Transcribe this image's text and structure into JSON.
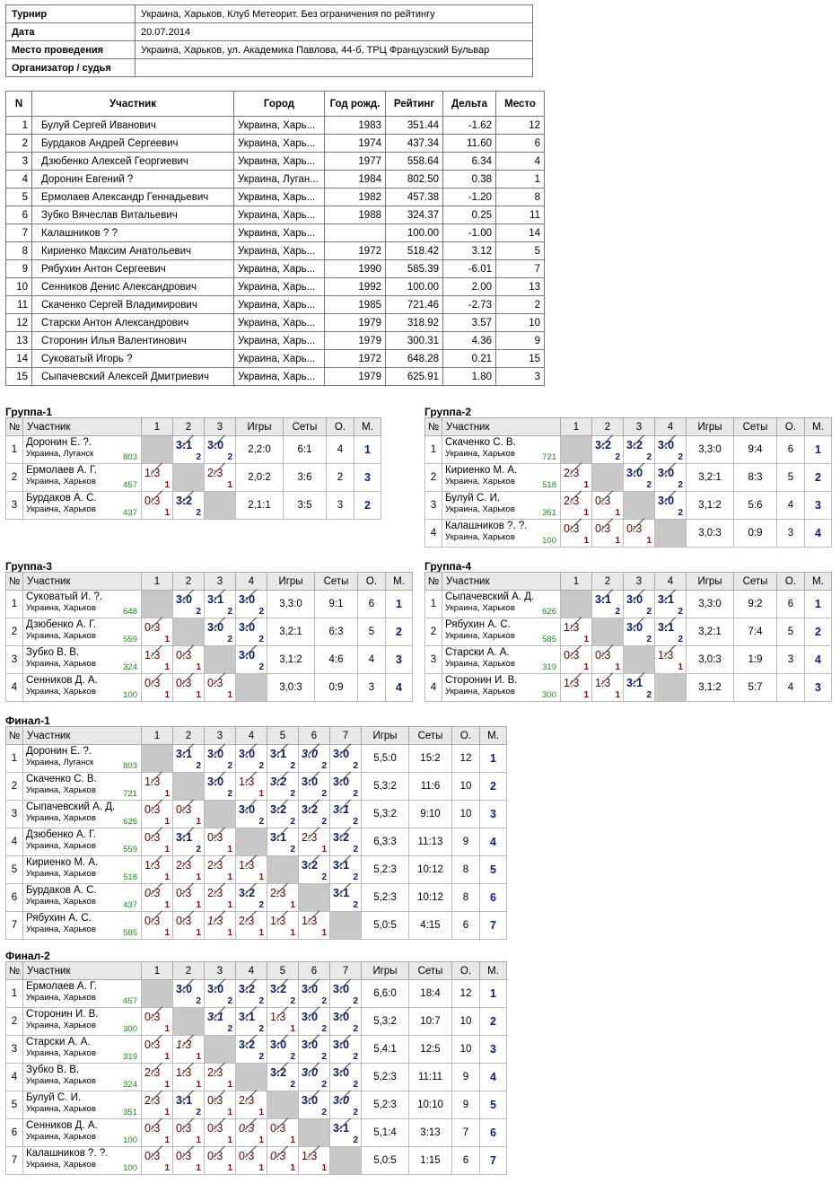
{
  "info": [
    {
      "k": "Турнир",
      "v": "Украина, Харьков, Клуб Метеорит. Без ограничения по рейтингу"
    },
    {
      "k": "Дата",
      "v": "20.07.2014"
    },
    {
      "k": "Место проведения",
      "v": "Украина, Харьков, ул. Академика Павлова, 44-б, ТРЦ Французский Бульвар"
    },
    {
      "k": "Организатор / судья",
      "v": ""
    }
  ],
  "main": {
    "headers": [
      "N",
      "Участник",
      "Город",
      "Год рожд.",
      "Рейтинг",
      "Дельта",
      "Место"
    ],
    "rows": [
      [
        "1",
        "Булуй Сергей Иванович",
        "Украина, Харь...",
        "1983",
        "351.44",
        "-1.62",
        "12"
      ],
      [
        "2",
        "Бурдаков Андрей Сергеевич",
        "Украина, Харь...",
        "1974",
        "437.34",
        "11.60",
        "6"
      ],
      [
        "3",
        "Дзюбенко Алексей Георгиевич",
        "Украина, Харь...",
        "1977",
        "558.64",
        "6.34",
        "4"
      ],
      [
        "4",
        "Доронин Евгений ?",
        "Украина, Луган...",
        "1984",
        "802.50",
        "0.38",
        "1"
      ],
      [
        "5",
        "Ермолаев Александр Геннадьевич",
        "Украина, Харь...",
        "1982",
        "457.38",
        "-1.20",
        "8"
      ],
      [
        "6",
        "Зубко Вячеслав Витальевич",
        "Украина, Харь...",
        "1988",
        "324.37",
        "0.25",
        "11"
      ],
      [
        "7",
        "Калашников ? ?",
        "Украина, Харь...",
        "",
        "100.00",
        "-1.00",
        "14"
      ],
      [
        "8",
        "Кириенко Максим Анатольевич",
        "Украина, Харь...",
        "1972",
        "518.42",
        "3.12",
        "5"
      ],
      [
        "9",
        "Рябухин Антон Сергеевич",
        "Украина, Харь...",
        "1990",
        "585.39",
        "-6.01",
        "7"
      ],
      [
        "10",
        "Сенников Денис Александрович",
        "Украина, Харь...",
        "1992",
        "100.00",
        "2.00",
        "13"
      ],
      [
        "11",
        "Скаченко Сергей Владимирович",
        "Украина, Харь...",
        "1985",
        "721.46",
        "-2.73",
        "2"
      ],
      [
        "12",
        "Старски Антон Александрович",
        "Украина, Харь...",
        "1979",
        "318.92",
        "3.57",
        "10"
      ],
      [
        "13",
        "Сторонин Илья Валентинович",
        "Украина, Харь...",
        "1979",
        "300.31",
        "4.36",
        "9"
      ],
      [
        "14",
        "Суковатый Игорь ?",
        "Украина, Харь...",
        "1972",
        "648.28",
        "0.21",
        "15"
      ],
      [
        "15",
        "Сыпачевский Алексей Дмитриевич",
        "Украина, Харь...",
        "1979",
        "625.91",
        "1.80",
        "3"
      ]
    ]
  },
  "groups": [
    {
      "title": "Группа-1",
      "headers": [
        "№",
        "Участник",
        "1",
        "2",
        "3",
        "Игры",
        "Сеты",
        "О.",
        "М."
      ],
      "players": [
        {
          "n": "1",
          "name": "Доронин Е. ?.",
          "city": "Украина, Луганск",
          "rating": "803",
          "cells": [
            "x",
            "3:1|2|w",
            "3:0|2|w"
          ],
          "games": "2,2:0",
          "sets": "6:1",
          "pts": "4",
          "place": "1"
        },
        {
          "n": "2",
          "name": "Ермолаев А. Г.",
          "city": "Украина, Харьков",
          "rating": "457",
          "cells": [
            "1:3|1|l",
            "x",
            "2:3|1|l"
          ],
          "games": "2,0:2",
          "sets": "3:6",
          "pts": "2",
          "place": "3"
        },
        {
          "n": "3",
          "name": "Бурдаков А. С.",
          "city": "Украина, Харьков",
          "rating": "437",
          "cells": [
            "0:3|1|l",
            "3:2|2|w",
            "x"
          ],
          "games": "2,1:1",
          "sets": "3:5",
          "pts": "3",
          "place": "2"
        }
      ]
    },
    {
      "title": "Группа-2",
      "headers": [
        "№",
        "Участник",
        "1",
        "2",
        "3",
        "4",
        "Игры",
        "Сеты",
        "О.",
        "М."
      ],
      "players": [
        {
          "n": "1",
          "name": "Скаченко С. В.",
          "city": "Украина, Харьков",
          "rating": "721",
          "cells": [
            "x",
            "3:2|2|w",
            "3:2|2|w",
            "3:0|2|w"
          ],
          "games": "3,3:0",
          "sets": "9:4",
          "pts": "6",
          "place": "1"
        },
        {
          "n": "2",
          "name": "Кириенко М. А.",
          "city": "Украина, Харьков",
          "rating": "518",
          "cells": [
            "2:3|1|l",
            "x",
            "3:0|2|w",
            "3:0|2|w"
          ],
          "games": "3,2:1",
          "sets": "8:3",
          "pts": "5",
          "place": "2"
        },
        {
          "n": "3",
          "name": "Булуй С. И.",
          "city": "Украина, Харьков",
          "rating": "351",
          "cells": [
            "2:3|1|l",
            "0:3|1|l",
            "x",
            "3:0|2|w"
          ],
          "games": "3,1:2",
          "sets": "5:6",
          "pts": "4",
          "place": "3"
        },
        {
          "n": "4",
          "name": "Калашников ?. ?.",
          "city": "Украина, Харьков",
          "rating": "100",
          "cells": [
            "0:3|1|l",
            "0:3|1|l",
            "0:3|1|l",
            "x"
          ],
          "games": "3,0:3",
          "sets": "0:9",
          "pts": "3",
          "place": "4"
        }
      ]
    },
    {
      "title": "Группа-3",
      "headers": [
        "№",
        "Участник",
        "1",
        "2",
        "3",
        "4",
        "Игры",
        "Сеты",
        "О.",
        "М."
      ],
      "players": [
        {
          "n": "1",
          "name": "Суковатый И. ?.",
          "city": "Украина, Харьков",
          "rating": "648",
          "cells": [
            "x",
            "3:0|2|w",
            "3:1|2|w",
            "3:0|2|w"
          ],
          "games": "3,3:0",
          "sets": "9:1",
          "pts": "6",
          "place": "1"
        },
        {
          "n": "2",
          "name": "Дзюбенко А. Г.",
          "city": "Украина, Харьков",
          "rating": "559",
          "cells": [
            "0:3|1|l",
            "x",
            "3:0|2|w",
            "3:0|2|w"
          ],
          "games": "3,2:1",
          "sets": "6:3",
          "pts": "5",
          "place": "2"
        },
        {
          "n": "3",
          "name": "Зубко В. В.",
          "city": "Украина, Харьков",
          "rating": "324",
          "cells": [
            "1:3|1|l",
            "0:3|1|l",
            "x",
            "3:0|2|w"
          ],
          "games": "3,1:2",
          "sets": "4:6",
          "pts": "4",
          "place": "3"
        },
        {
          "n": "4",
          "name": "Сенников Д. А.",
          "city": "Украина, Харьков",
          "rating": "100",
          "cells": [
            "0:3|1|l",
            "0:3|1|l",
            "0:3|1|l",
            "x"
          ],
          "games": "3,0:3",
          "sets": "0:9",
          "pts": "3",
          "place": "4"
        }
      ]
    },
    {
      "title": "Группа-4",
      "headers": [
        "№",
        "Участник",
        "1",
        "2",
        "3",
        "4",
        "Игры",
        "Сеты",
        "О.",
        "М."
      ],
      "players": [
        {
          "n": "1",
          "name": "Сыпачевский А. Д.",
          "city": "Украина, Харьков",
          "rating": "626",
          "cells": [
            "x",
            "3:1|2|w",
            "3:0|2|w",
            "3:1|2|w"
          ],
          "games": "3,3:0",
          "sets": "9:2",
          "pts": "6",
          "place": "1"
        },
        {
          "n": "2",
          "name": "Рябухин А. С.",
          "city": "Украина, Харьков",
          "rating": "585",
          "cells": [
            "1:3|1|l",
            "x",
            "3:0|2|w",
            "3:1|2|w"
          ],
          "games": "3,2:1",
          "sets": "7:4",
          "pts": "5",
          "place": "2"
        },
        {
          "n": "3",
          "name": "Старски А. А.",
          "city": "Украина, Харьков",
          "rating": "319",
          "cells": [
            "0:3|1|l",
            "0:3|1|l",
            "x",
            "1:3|1|l"
          ],
          "games": "3,0:3",
          "sets": "1:9",
          "pts": "3",
          "place": "4"
        },
        {
          "n": "4",
          "name": "Сторонин И. В.",
          "city": "Украина, Харьков",
          "rating": "300",
          "cells": [
            "1:3|1|l",
            "1:3|1|l",
            "3:1|2|w",
            "x"
          ],
          "games": "3,1:2",
          "sets": "5:7",
          "pts": "4",
          "place": "3"
        }
      ]
    },
    {
      "title": "Финал-1",
      "headers": [
        "№",
        "Участник",
        "1",
        "2",
        "3",
        "4",
        "5",
        "6",
        "7",
        "Игры",
        "Сеты",
        "О.",
        "М."
      ],
      "players": [
        {
          "n": "1",
          "name": "Доронин Е. ?.",
          "city": "Украина, Луганск",
          "rating": "803",
          "cells": [
            "x",
            "3:1|2|w",
            "3:0|2|w",
            "3:0|2|w",
            "3:1|2|w",
            "3:0|2|wi",
            "3:0|2|w"
          ],
          "games": "5,5:0",
          "sets": "15:2",
          "pts": "12",
          "place": "1"
        },
        {
          "n": "2",
          "name": "Скаченко С. В.",
          "city": "Украина, Харьков",
          "rating": "721",
          "cells": [
            "1:3|1|l",
            "x",
            "3:0|2|w",
            "1:3|1|l",
            "3:2|2|wi",
            "3:0|2|w",
            "3:0|2|w"
          ],
          "games": "5,3:2",
          "sets": "11:6",
          "pts": "10",
          "place": "2"
        },
        {
          "n": "3",
          "name": "Сыпачевский А. Д.",
          "city": "Украина, Харьков",
          "rating": "626",
          "cells": [
            "0:3|1|l",
            "0:3|1|l",
            "x",
            "3:0|2|w",
            "3:2|2|w",
            "3:2|2|w",
            "3:1|2|wi"
          ],
          "games": "5,3:2",
          "sets": "9:10",
          "pts": "10",
          "place": "3"
        },
        {
          "n": "4",
          "name": "Дзюбенко А. Г.",
          "city": "Украина, Харьков",
          "rating": "559",
          "cells": [
            "0:3|1|l",
            "3:1|2|w",
            "0:3|1|l",
            "x",
            "3:1|2|w",
            "2:3|1|l",
            "3:2|2|w"
          ],
          "games": "6,3:3",
          "sets": "11:13",
          "pts": "9",
          "place": "4"
        },
        {
          "n": "5",
          "name": "Кириенко М. А.",
          "city": "Украина, Харьков",
          "rating": "518",
          "cells": [
            "1:3|1|l",
            "2:3|1|l",
            "2:3|1|l",
            "1:3|1|l",
            "x",
            "3:2|2|w",
            "3:1|2|w"
          ],
          "games": "5,2:3",
          "sets": "10:12",
          "pts": "8",
          "place": "5"
        },
        {
          "n": "6",
          "name": "Бурдаков А. С.",
          "city": "Украина, Харьков",
          "rating": "437",
          "cells": [
            "0:3|1|li",
            "0:3|1|l",
            "2:3|1|l",
            "3:2|2|w",
            "2:3|1|l",
            "x",
            "3:1|2|w"
          ],
          "games": "5,2:3",
          "sets": "10:12",
          "pts": "8",
          "place": "6"
        },
        {
          "n": "7",
          "name": "Рябухин А. С.",
          "city": "Украина, Харьков",
          "rating": "585",
          "cells": [
            "0:3|1|l",
            "0:3|1|l",
            "1:3|1|li",
            "2:3|1|l",
            "1:3|1|l",
            "1:3|1|l",
            "x"
          ],
          "games": "5,0:5",
          "sets": "4:15",
          "pts": "6",
          "place": "7"
        }
      ]
    },
    {
      "title": "Финал-2",
      "headers": [
        "№",
        "Участник",
        "1",
        "2",
        "3",
        "4",
        "5",
        "6",
        "7",
        "Игры",
        "Сеты",
        "О.",
        "М."
      ],
      "players": [
        {
          "n": "1",
          "name": "Ермолаев А. Г.",
          "city": "Украина, Харьков",
          "rating": "457",
          "cells": [
            "x",
            "3:0|2|w",
            "3:0|2|w",
            "3:2|2|w",
            "3:2|2|w",
            "3:0|2|w",
            "3:0|2|w"
          ],
          "games": "6,6:0",
          "sets": "18:4",
          "pts": "12",
          "place": "1"
        },
        {
          "n": "2",
          "name": "Сторонин И. В.",
          "city": "Украина, Харьков",
          "rating": "300",
          "cells": [
            "0:3|1|l",
            "x",
            "3:1|2|wi",
            "3:1|2|w",
            "1:3|1|l",
            "3:0|2|w",
            "3:0|2|w"
          ],
          "games": "5,3:2",
          "sets": "10:7",
          "pts": "10",
          "place": "2"
        },
        {
          "n": "3",
          "name": "Старски А. А.",
          "city": "Украина, Харьков",
          "rating": "319",
          "cells": [
            "0:3|1|l",
            "1:3|1|li",
            "x",
            "3:2|2|w",
            "3:0|2|w",
            "3:0|2|w",
            "3:0|2|w"
          ],
          "games": "5,4:1",
          "sets": "12:5",
          "pts": "10",
          "place": "3"
        },
        {
          "n": "4",
          "name": "Зубко В. В.",
          "city": "Украина, Харьков",
          "rating": "324",
          "cells": [
            "2:3|1|l",
            "1:3|1|l",
            "2:3|1|l",
            "x",
            "3:2|2|w",
            "3:0|2|wi",
            "3:0|2|w"
          ],
          "games": "5,2:3",
          "sets": "11:11",
          "pts": "9",
          "place": "4"
        },
        {
          "n": "5",
          "name": "Булуй С. И.",
          "city": "Украина, Харьков",
          "rating": "351",
          "cells": [
            "2:3|1|l",
            "3:1|2|w",
            "0:3|1|l",
            "2:3|1|l",
            "x",
            "3:0|2|w",
            "3:0|2|wi"
          ],
          "games": "5,2:3",
          "sets": "10:10",
          "pts": "9",
          "place": "5"
        },
        {
          "n": "6",
          "name": "Сенников Д. А.",
          "city": "Украина, Харьков",
          "rating": "100",
          "cells": [
            "0:3|1|l",
            "0:3|1|l",
            "0:3|1|l",
            "0:3|1|li",
            "0:3|1|l",
            "x",
            "3:1|2|w"
          ],
          "games": "5,1:4",
          "sets": "3:13",
          "pts": "7",
          "place": "6"
        },
        {
          "n": "7",
          "name": "Калашников ?. ?.",
          "city": "Украина, Харьков",
          "rating": "100",
          "cells": [
            "0:3|1|l",
            "0:3|1|l",
            "0:3|1|l",
            "0:3|1|l",
            "0:3|1|li",
            "1:3|1|l",
            "x"
          ],
          "games": "5,0:5",
          "sets": "1:15",
          "pts": "6",
          "place": "7"
        }
      ]
    }
  ]
}
